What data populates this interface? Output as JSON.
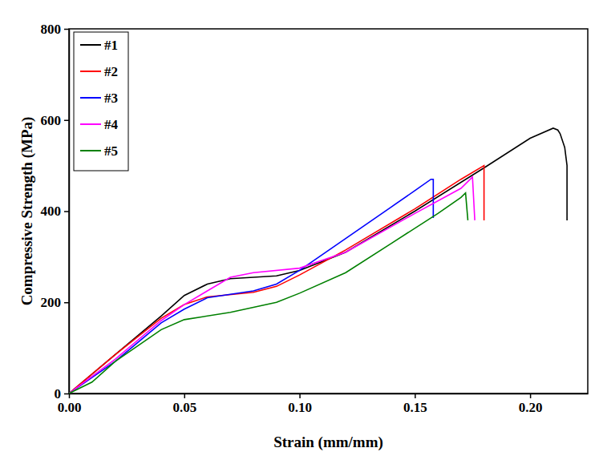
{
  "chart_data": {
    "type": "line",
    "x_label": "Strain (mm/mm)",
    "y_label": "Compressive Strength (MPa)",
    "xlim": [
      0,
      0.225
    ],
    "xticks": [
      {
        "value": 0,
        "label": "0.00"
      },
      0.05,
      {
        "value": 0.1,
        "label": "0.10"
      },
      0.15,
      {
        "value": 0.2,
        "label": "0.20"
      }
    ],
    "ylim": [
      0,
      800
    ],
    "yticks": [
      0,
      200,
      400,
      600,
      800
    ],
    "grid": false,
    "legend": "top-left",
    "series": [
      {
        "name": "#1",
        "color": "#000000",
        "x": [
          0,
          0.02,
          0.04,
          0.05,
          0.06,
          0.07,
          0.09,
          0.1,
          0.12,
          0.15,
          0.18,
          0.2,
          0.21,
          0.212,
          0.213,
          0.215,
          0.216,
          0.216
        ],
        "values": [
          0,
          85,
          170,
          215,
          240,
          252,
          258,
          270,
          310,
          400,
          495,
          560,
          582,
          578,
          570,
          540,
          500,
          380
        ]
      },
      {
        "name": "#2",
        "color": "#ff0000",
        "x": [
          0,
          0.02,
          0.04,
          0.05,
          0.06,
          0.08,
          0.09,
          0.1,
          0.12,
          0.15,
          0.17,
          0.18,
          0.18
        ],
        "values": [
          0,
          85,
          165,
          195,
          212,
          222,
          235,
          260,
          315,
          405,
          470,
          500,
          380
        ]
      },
      {
        "name": "#3",
        "color": "#0000ff",
        "x": [
          0,
          0.02,
          0.04,
          0.05,
          0.06,
          0.08,
          0.09,
          0.1,
          0.12,
          0.14,
          0.15,
          0.157,
          0.158,
          0.158
        ],
        "values": [
          0,
          70,
          155,
          185,
          210,
          225,
          240,
          270,
          340,
          410,
          445,
          470,
          470,
          385
        ]
      },
      {
        "name": "#4",
        "color": "#ff00ff",
        "x": [
          0,
          0.02,
          0.04,
          0.05,
          0.06,
          0.07,
          0.08,
          0.1,
          0.12,
          0.15,
          0.17,
          0.175,
          0.176
        ],
        "values": [
          0,
          75,
          160,
          195,
          225,
          255,
          265,
          275,
          310,
          395,
          450,
          475,
          380
        ]
      },
      {
        "name": "#5",
        "color": "#008000",
        "x": [
          0,
          0.01,
          0.02,
          0.04,
          0.05,
          0.07,
          0.09,
          0.1,
          0.12,
          0.14,
          0.16,
          0.17,
          0.172,
          0.173
        ],
        "values": [
          0,
          25,
          70,
          140,
          162,
          178,
          200,
          220,
          265,
          330,
          395,
          430,
          440,
          380
        ]
      }
    ]
  }
}
